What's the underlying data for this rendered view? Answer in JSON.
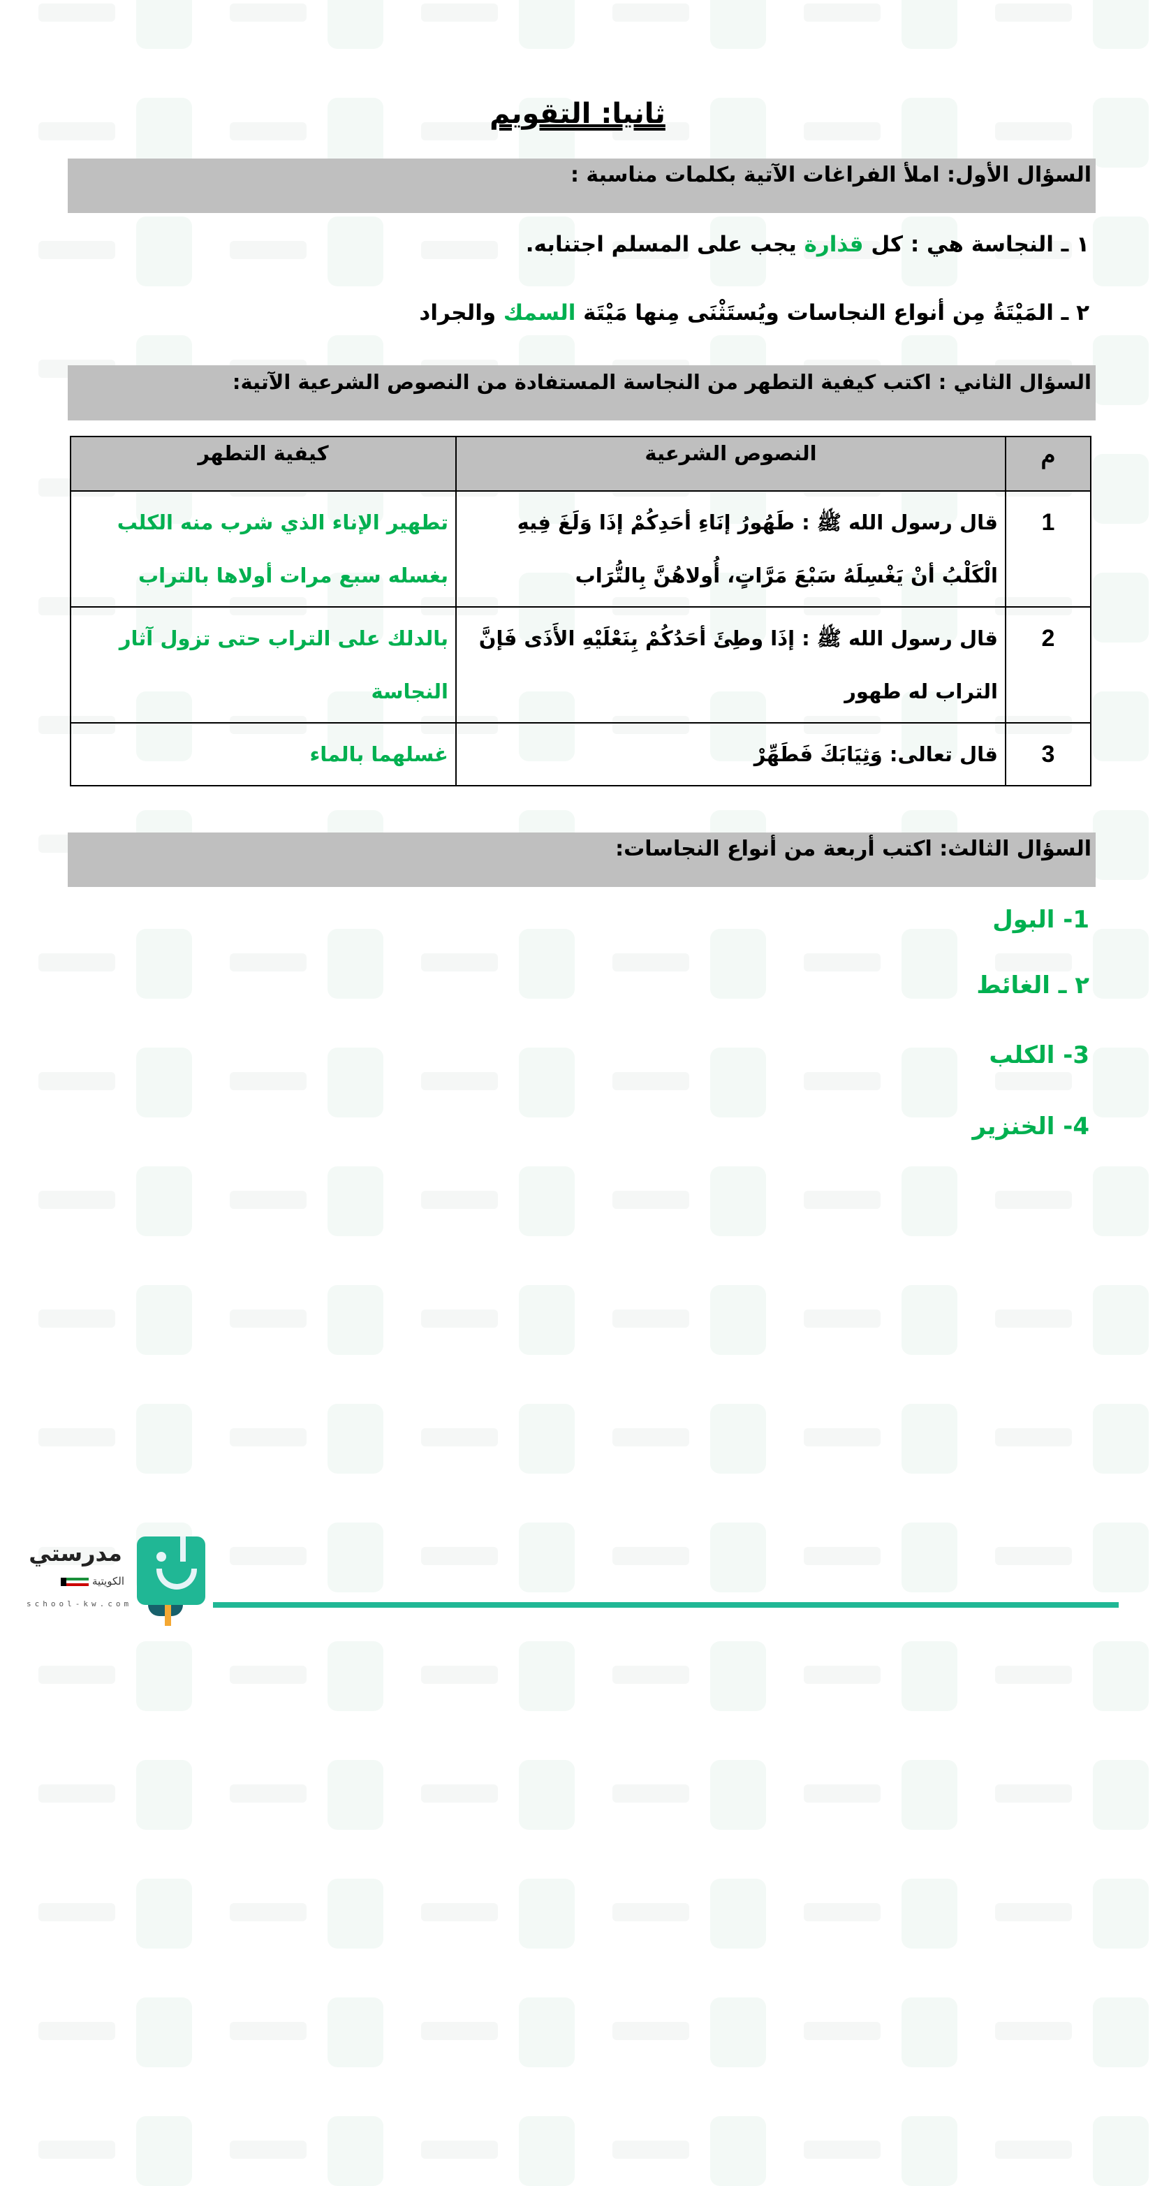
{
  "watermark": "مدرستي",
  "title": "ثانيا: التقويم",
  "q1": {
    "heading": "السؤال الأول: املأ الفراغات الآتية بكلمات مناسبة :",
    "items": [
      {
        "before": "١ ـ النجاسة هي : كل ",
        "answer": "قذارة",
        "after": " يجب على المسلم اجتنابه."
      },
      {
        "before": "٢ ـ المَيْتَةُ مِن أنواع النجاسات ويُستَثْنَى مِنها مَيْتَة ",
        "answer": "السمك",
        "after": " والجراد"
      }
    ]
  },
  "q2": {
    "heading": "السؤال الثاني : اكتب كيفية التطهر من النجاسة المستفادة من النصوص الشرعية الآتية:",
    "columns": [
      "م",
      "النصوص الشرعية",
      "كيفية التطهر"
    ],
    "rows": [
      {
        "num": "1",
        "text": "قال رسول الله ﷺ : طَهُورُ إنَاءِ أحَدِكُمْ إذَا وَلَغَ فِيهِ الْكَلْبُ أنْ يَغْسِلَهُ سَبْعَ مَرَّاتٍ، أُولاهُنَّ بِالتُّرَاب",
        "answer": "تطهير الإناء الذي شرب منه الكلب بغسله سبع مرات أولاها بالتراب"
      },
      {
        "num": "2",
        "text": "قال رسول الله ﷺ : إذَا وطِئَ أحَدُكُمْ بِنَعْلَيْهِ الأَذَى فَإنَّ التراب له طهور",
        "answer": "بالدلك على التراب حتى تزول آثار النجاسة"
      },
      {
        "num": "3",
        "text": "قال تعالى: وَثِيَابَكَ فَطَهِّرْ",
        "answer": "غسلهما بالماء"
      }
    ]
  },
  "q3": {
    "heading": "السؤال الثالث: اكتب أربعة من أنواع النجاسات:",
    "items": [
      "1- البول",
      "٢ ـ الغائط",
      "3- الكلب",
      "4- الخنزير"
    ]
  },
  "footer": {
    "logo_name": "مدرستي",
    "logo_sub": "الكويتية",
    "logo_url": "school-kw.com"
  },
  "colors": {
    "answer": "#00b050",
    "band": "#bfbfbf",
    "brand": "#20b795"
  }
}
